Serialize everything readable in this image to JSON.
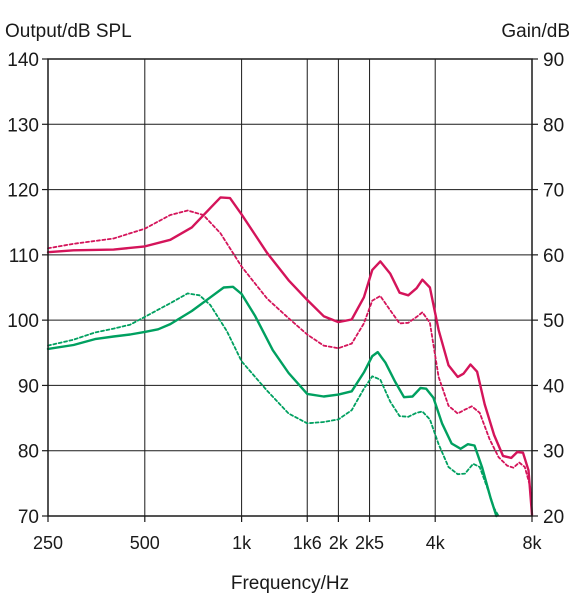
{
  "chart_data": {
    "type": "line",
    "xscale": "log",
    "xlabel": "Frequency/Hz",
    "ylabel_left": "Output/dB SPL",
    "ylabel_right": "Gain/dB",
    "xlim": [
      250,
      8000
    ],
    "ylim_left": [
      70,
      140
    ],
    "ylim_right": [
      20,
      90
    ],
    "grid": true,
    "x_ticks": [
      {
        "value": 250,
        "label": "250"
      },
      {
        "value": 500,
        "label": "500"
      },
      {
        "value": 1000,
        "label": "1k"
      },
      {
        "value": 1600,
        "label": "1k6"
      },
      {
        "value": 2000,
        "label": "2k"
      },
      {
        "value": 2500,
        "label": "2k5"
      },
      {
        "value": 4000,
        "label": "4k"
      },
      {
        "value": 8000,
        "label": "8k"
      }
    ],
    "y_ticks_left": [
      "70",
      "80",
      "90",
      "100",
      "110",
      "120",
      "130",
      "140"
    ],
    "y_ticks_right": [
      "20",
      "30",
      "40",
      "50",
      "60",
      "70",
      "80",
      "90"
    ],
    "colors": {
      "red": "#d4145a",
      "green": "#00a060",
      "axis": "#1a1a1a",
      "grid": "#1a1a1a"
    },
    "series": [
      {
        "color": "#d4145a",
        "style": "solid",
        "points": [
          [
            250,
            110.4
          ],
          [
            300,
            110.7
          ],
          [
            400,
            110.8
          ],
          [
            500,
            111.3
          ],
          [
            600,
            112.3
          ],
          [
            700,
            114.2
          ],
          [
            800,
            117.2
          ],
          [
            860,
            118.8
          ],
          [
            920,
            118.7
          ],
          [
            1000,
            116.2
          ],
          [
            1200,
            110.3
          ],
          [
            1400,
            106.1
          ],
          [
            1600,
            103.1
          ],
          [
            1800,
            100.6
          ],
          [
            2000,
            99.7
          ],
          [
            2200,
            100.1
          ],
          [
            2400,
            103.5
          ],
          [
            2550,
            107.7
          ],
          [
            2700,
            109.0
          ],
          [
            2900,
            107.1
          ],
          [
            3100,
            104.2
          ],
          [
            3300,
            103.8
          ],
          [
            3500,
            104.9
          ],
          [
            3650,
            106.2
          ],
          [
            3850,
            105.0
          ],
          [
            4100,
            98.5
          ],
          [
            4400,
            93.1
          ],
          [
            4700,
            91.3
          ],
          [
            4900,
            91.8
          ],
          [
            5150,
            93.2
          ],
          [
            5400,
            92.1
          ],
          [
            5700,
            87.1
          ],
          [
            6100,
            82.4
          ],
          [
            6500,
            79.2
          ],
          [
            6900,
            78.9
          ],
          [
            7200,
            79.8
          ],
          [
            7500,
            79.7
          ],
          [
            7800,
            77.0
          ],
          [
            8000,
            70.2
          ]
        ]
      },
      {
        "color": "#d4145a",
        "style": "dashed",
        "points": [
          [
            250,
            111.0
          ],
          [
            300,
            111.7
          ],
          [
            400,
            112.5
          ],
          [
            500,
            114.0
          ],
          [
            600,
            116.1
          ],
          [
            680,
            116.8
          ],
          [
            760,
            116.1
          ],
          [
            860,
            113.3
          ],
          [
            1000,
            108.2
          ],
          [
            1200,
            103.3
          ],
          [
            1400,
            100.3
          ],
          [
            1600,
            97.8
          ],
          [
            1800,
            96.1
          ],
          [
            2000,
            95.7
          ],
          [
            2200,
            96.4
          ],
          [
            2400,
            99.5
          ],
          [
            2550,
            103.0
          ],
          [
            2700,
            103.7
          ],
          [
            2900,
            101.5
          ],
          [
            3100,
            99.5
          ],
          [
            3300,
            99.6
          ],
          [
            3500,
            100.5
          ],
          [
            3650,
            101.2
          ],
          [
            3850,
            99.6
          ],
          [
            4100,
            91.3
          ],
          [
            4400,
            86.9
          ],
          [
            4700,
            85.7
          ],
          [
            4950,
            86.3
          ],
          [
            5200,
            86.8
          ],
          [
            5500,
            85.8
          ],
          [
            5900,
            81.8
          ],
          [
            6300,
            79.0
          ],
          [
            6700,
            77.7
          ],
          [
            7000,
            77.4
          ],
          [
            7300,
            78.2
          ],
          [
            7600,
            77.5
          ],
          [
            7900,
            74.5
          ],
          [
            8000,
            70.0
          ]
        ]
      },
      {
        "color": "#00a060",
        "style": "solid",
        "points": [
          [
            250,
            95.6
          ],
          [
            300,
            96.2
          ],
          [
            350,
            97.1
          ],
          [
            400,
            97.5
          ],
          [
            450,
            97.8
          ],
          [
            500,
            98.2
          ],
          [
            550,
            98.6
          ],
          [
            600,
            99.4
          ],
          [
            700,
            101.4
          ],
          [
            800,
            103.5
          ],
          [
            880,
            105.0
          ],
          [
            940,
            105.1
          ],
          [
            1000,
            104.0
          ],
          [
            1100,
            100.7
          ],
          [
            1250,
            95.4
          ],
          [
            1400,
            91.9
          ],
          [
            1600,
            88.7
          ],
          [
            1800,
            88.3
          ],
          [
            2000,
            88.6
          ],
          [
            2200,
            89.1
          ],
          [
            2400,
            92.0
          ],
          [
            2550,
            94.5
          ],
          [
            2650,
            95.1
          ],
          [
            2800,
            93.5
          ],
          [
            3000,
            90.6
          ],
          [
            3200,
            88.2
          ],
          [
            3400,
            88.3
          ],
          [
            3600,
            89.6
          ],
          [
            3750,
            89.5
          ],
          [
            3950,
            88.1
          ],
          [
            4200,
            84.2
          ],
          [
            4500,
            81.1
          ],
          [
            4800,
            80.3
          ],
          [
            5050,
            81.0
          ],
          [
            5300,
            80.8
          ],
          [
            5600,
            77.4
          ],
          [
            5950,
            72.7
          ],
          [
            6200,
            70.0
          ]
        ]
      },
      {
        "color": "#00a060",
        "style": "dashed",
        "points": [
          [
            250,
            96.1
          ],
          [
            300,
            97.0
          ],
          [
            350,
            98.1
          ],
          [
            400,
            98.7
          ],
          [
            450,
            99.3
          ],
          [
            500,
            100.5
          ],
          [
            550,
            101.6
          ],
          [
            600,
            102.6
          ],
          [
            680,
            104.1
          ],
          [
            740,
            103.8
          ],
          [
            800,
            102.3
          ],
          [
            900,
            98.3
          ],
          [
            1000,
            93.7
          ],
          [
            1200,
            89.2
          ],
          [
            1400,
            85.7
          ],
          [
            1600,
            84.2
          ],
          [
            1800,
            84.4
          ],
          [
            2000,
            84.8
          ],
          [
            2200,
            86.2
          ],
          [
            2400,
            89.5
          ],
          [
            2550,
            91.4
          ],
          [
            2700,
            90.9
          ],
          [
            2900,
            87.5
          ],
          [
            3100,
            85.3
          ],
          [
            3300,
            85.2
          ],
          [
            3500,
            85.8
          ],
          [
            3650,
            86.0
          ],
          [
            3850,
            84.8
          ],
          [
            4100,
            81.0
          ],
          [
            4400,
            77.5
          ],
          [
            4700,
            76.4
          ],
          [
            4950,
            76.5
          ],
          [
            5250,
            78.0
          ],
          [
            5500,
            77.5
          ],
          [
            5800,
            74.4
          ],
          [
            6100,
            71.2
          ],
          [
            6300,
            70.0
          ]
        ]
      }
    ]
  }
}
